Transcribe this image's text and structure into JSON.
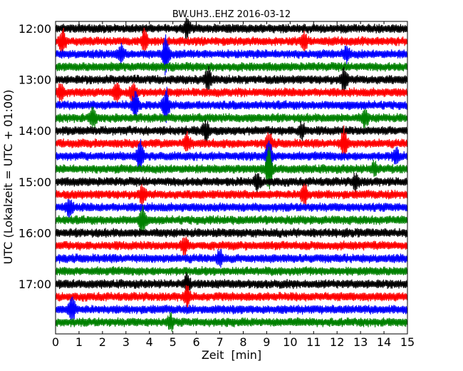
{
  "chart_data": {
    "type": "line",
    "title": "BW.UH3..EHZ 2016-03-12",
    "xlabel": "Zeit  [min]",
    "ylabel": "UTC (Lokalzeit = UTC + 01:00)",
    "xlim": [
      0,
      15
    ],
    "x_ticks": [
      "0",
      "1",
      "2",
      "3",
      "4",
      "5",
      "6",
      "7",
      "8",
      "9",
      "10",
      "11",
      "12",
      "13",
      "14",
      "15"
    ],
    "y_ticks": [
      "12:00",
      "13:00",
      "14:00",
      "15:00",
      "16:00",
      "17:00"
    ],
    "trace_start": "12:00",
    "trace_interval_min": 15,
    "trace_count": 24,
    "color_cycle": [
      "#000000",
      "#ff0000",
      "#0000ff",
      "#008000"
    ],
    "events": [
      {
        "trace": 0,
        "minute": 5.6,
        "amp": 0.7
      },
      {
        "trace": 1,
        "minute": 0.3,
        "amp": 0.9
      },
      {
        "trace": 1,
        "minute": 3.8,
        "amp": 0.8
      },
      {
        "trace": 1,
        "minute": 10.6,
        "amp": 0.6
      },
      {
        "trace": 2,
        "minute": 2.8,
        "amp": 0.6
      },
      {
        "trace": 2,
        "minute": 4.7,
        "amp": 1.4
      },
      {
        "trace": 2,
        "minute": 12.4,
        "amp": 0.5
      },
      {
        "trace": 4,
        "minute": 6.5,
        "amp": 0.9
      },
      {
        "trace": 4,
        "minute": 12.3,
        "amp": 0.8
      },
      {
        "trace": 5,
        "minute": 0.2,
        "amp": 0.6
      },
      {
        "trace": 5,
        "minute": 2.6,
        "amp": 0.7
      },
      {
        "trace": 5,
        "minute": 3.3,
        "amp": 0.8
      },
      {
        "trace": 6,
        "minute": 3.4,
        "amp": 0.9
      },
      {
        "trace": 6,
        "minute": 4.7,
        "amp": 1.4
      },
      {
        "trace": 7,
        "minute": 1.6,
        "amp": 0.7
      },
      {
        "trace": 7,
        "minute": 13.2,
        "amp": 0.6
      },
      {
        "trace": 8,
        "minute": 6.4,
        "amp": 0.7
      },
      {
        "trace": 8,
        "minute": 10.5,
        "amp": 0.6
      },
      {
        "trace": 9,
        "minute": 5.6,
        "amp": 0.6
      },
      {
        "trace": 9,
        "minute": 9.1,
        "amp": 0.9
      },
      {
        "trace": 9,
        "minute": 12.3,
        "amp": 1.1
      },
      {
        "trace": 10,
        "minute": 3.6,
        "amp": 1.3
      },
      {
        "trace": 10,
        "minute": 9.1,
        "amp": 1.2
      },
      {
        "trace": 10,
        "minute": 14.5,
        "amp": 0.6
      },
      {
        "trace": 11,
        "minute": 9.1,
        "amp": 1.6
      },
      {
        "trace": 11,
        "minute": 13.6,
        "amp": 0.5
      },
      {
        "trace": 12,
        "minute": 8.6,
        "amp": 0.6
      },
      {
        "trace": 12,
        "minute": 12.8,
        "amp": 0.6
      },
      {
        "trace": 13,
        "minute": 3.7,
        "amp": 0.6
      },
      {
        "trace": 13,
        "minute": 10.6,
        "amp": 0.9
      },
      {
        "trace": 14,
        "minute": 0.6,
        "amp": 0.6
      },
      {
        "trace": 15,
        "minute": 3.7,
        "amp": 1.0
      },
      {
        "trace": 17,
        "minute": 5.5,
        "amp": 0.6
      },
      {
        "trace": 18,
        "minute": 7.0,
        "amp": 0.6
      },
      {
        "trace": 20,
        "minute": 5.6,
        "amp": 0.6
      },
      {
        "trace": 21,
        "minute": 5.6,
        "amp": 0.7
      },
      {
        "trace": 22,
        "minute": 0.7,
        "amp": 1.0
      },
      {
        "trace": 23,
        "minute": 4.9,
        "amp": 0.5
      }
    ]
  }
}
